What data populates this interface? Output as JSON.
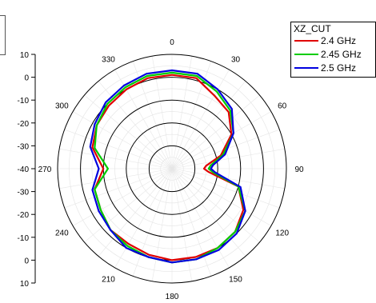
{
  "chart_data": {
    "type": "polar-line",
    "title": "",
    "angle_labels": [
      "0",
      "30",
      "60",
      "90",
      "120",
      "150",
      "180",
      "210",
      "240",
      "270",
      "300",
      "330"
    ],
    "radial_ticks": [
      "10",
      "0",
      "-10",
      "-20",
      "-30",
      "-40"
    ],
    "radial_range": [
      -40,
      10
    ],
    "direction": "clockwise",
    "zero_location": "top",
    "legend": {
      "title": "XZ_CUT",
      "position": "top-right"
    },
    "series": [
      {
        "name": "2.4 GHz",
        "color": "#e00000",
        "angles": [
          0,
          15,
          30,
          45,
          60,
          75,
          85,
          90,
          95,
          105,
          120,
          135,
          150,
          165,
          180,
          195,
          210,
          225,
          240,
          255,
          270,
          285,
          300,
          315,
          330,
          345
        ],
        "values": [
          1,
          1,
          -3,
          -5,
          -10,
          -18,
          -25,
          -26,
          -24,
          -10,
          -4,
          -1,
          0,
          0,
          0,
          -1,
          -2,
          -2,
          -4,
          -5,
          -10,
          -4,
          -2,
          -1,
          0,
          1
        ]
      },
      {
        "name": "2.45 GHz",
        "color": "#00cc00",
        "angles": [
          0,
          15,
          30,
          45,
          60,
          75,
          85,
          90,
          95,
          105,
          120,
          135,
          150,
          165,
          180,
          195,
          210,
          225,
          240,
          255,
          270,
          285,
          300,
          315,
          330,
          345
        ],
        "values": [
          2,
          2,
          -1,
          -4,
          -9,
          -17,
          -23,
          -24,
          -22,
          -10,
          -3,
          -1,
          0,
          1,
          1,
          0,
          -1,
          -2,
          -4,
          -5,
          -12,
          -5,
          -2,
          0,
          1,
          2
        ]
      },
      {
        "name": "2.5 GHz",
        "color": "#0000e0",
        "angles": [
          0,
          15,
          30,
          45,
          60,
          75,
          85,
          90,
          95,
          105,
          120,
          135,
          150,
          165,
          180,
          195,
          210,
          225,
          240,
          255,
          270,
          285,
          300,
          315,
          330,
          345
        ],
        "values": [
          3,
          3,
          0,
          -3,
          -9,
          -16,
          -22,
          -23,
          -21,
          -9,
          -3,
          0,
          1,
          1,
          1,
          0,
          0,
          -2,
          -3,
          -4,
          -8,
          -3,
          -1,
          1,
          2,
          3
        ]
      }
    ]
  }
}
